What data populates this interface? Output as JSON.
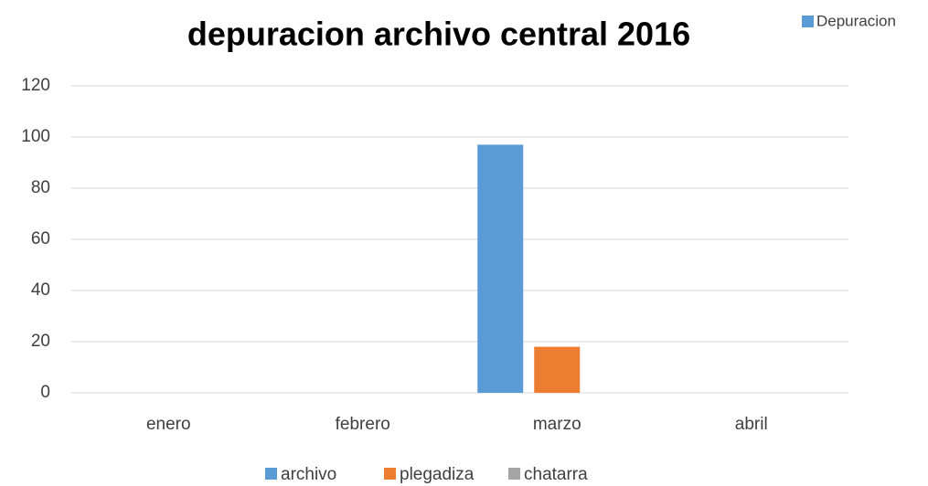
{
  "chart_data": {
    "type": "bar",
    "title": "depuracion archivo central 2016",
    "categories": [
      "enero",
      "febrero",
      "marzo",
      "abril"
    ],
    "series": [
      {
        "name": "archivo",
        "color": "#5b9bd5",
        "values": [
          null,
          null,
          97,
          null
        ]
      },
      {
        "name": "plegadiza",
        "color": "#ed7d31",
        "values": [
          null,
          null,
          18,
          null
        ]
      },
      {
        "name": "chatarra",
        "color": "#a5a5a5",
        "values": [
          null,
          null,
          null,
          null
        ]
      }
    ],
    "extra_legend": {
      "name": "Depuracion",
      "color": "#5b9bd5"
    },
    "ylim": [
      0,
      120
    ],
    "yticks": [
      0,
      20,
      40,
      60,
      80,
      100,
      120
    ],
    "grid": true,
    "legend": "bottom"
  }
}
